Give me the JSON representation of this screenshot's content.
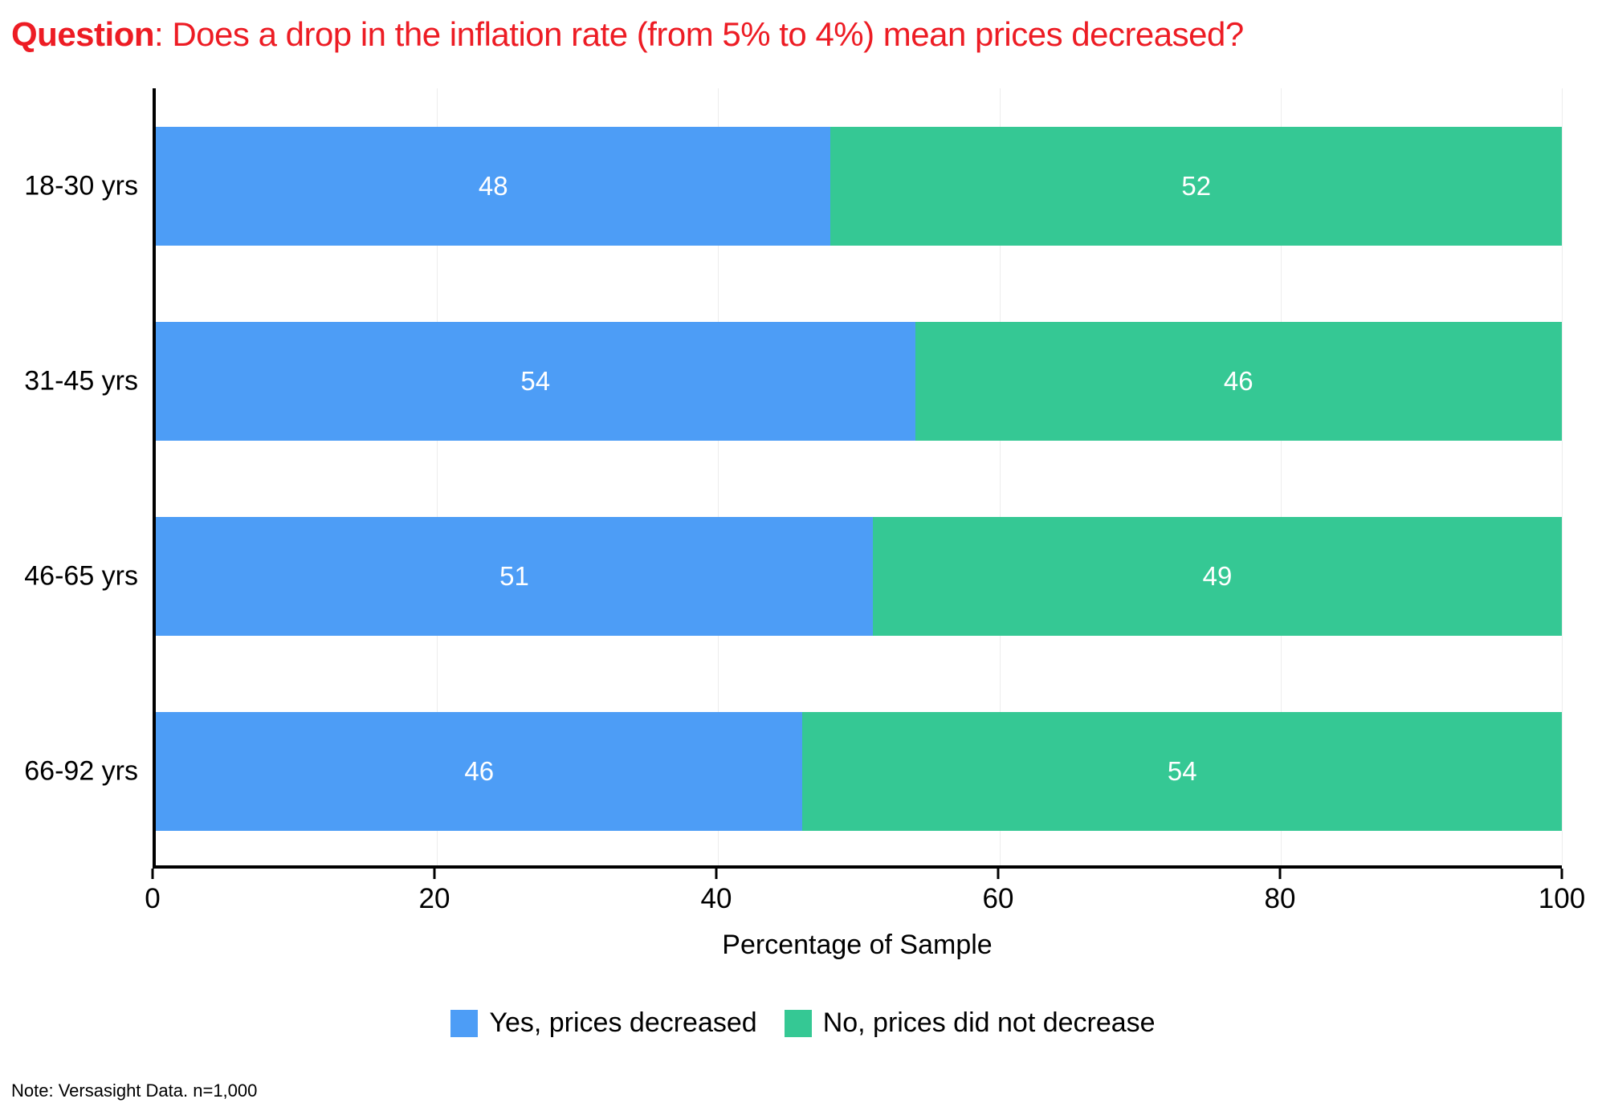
{
  "title": {
    "prefix": "Question",
    "rest": ": Does a drop in the inflation rate (from 5% to 4%) mean prices decreased?"
  },
  "note": "Note: Versasight Data. n=1,000",
  "colors": {
    "title_red": "#ED1C24",
    "yes_blue": "#4D9DF6",
    "no_green": "#35C894",
    "bar_value_text": "#ffffff",
    "gridline": "#ededed"
  },
  "chart_data": {
    "type": "bar",
    "orientation": "horizontal",
    "stacked": true,
    "title": "Question: Does a drop in the inflation rate (from 5% to 4%) mean prices decreased?",
    "categories": [
      "18-30 yrs",
      "31-45 yrs",
      "46-65 yrs",
      "66-92 yrs"
    ],
    "series": [
      {
        "name": "Yes, prices decreased",
        "color": "#4D9DF6",
        "values": [
          48,
          54,
          51,
          46
        ]
      },
      {
        "name": "No, prices did not decrease",
        "color": "#35C894",
        "values": [
          52,
          46,
          49,
          54
        ]
      }
    ],
    "xlabel": "Percentage of Sample",
    "xlim": [
      0,
      100
    ],
    "xticks": [
      0,
      20,
      40,
      60,
      80,
      100
    ],
    "legend_position": "bottom",
    "grid": false
  }
}
